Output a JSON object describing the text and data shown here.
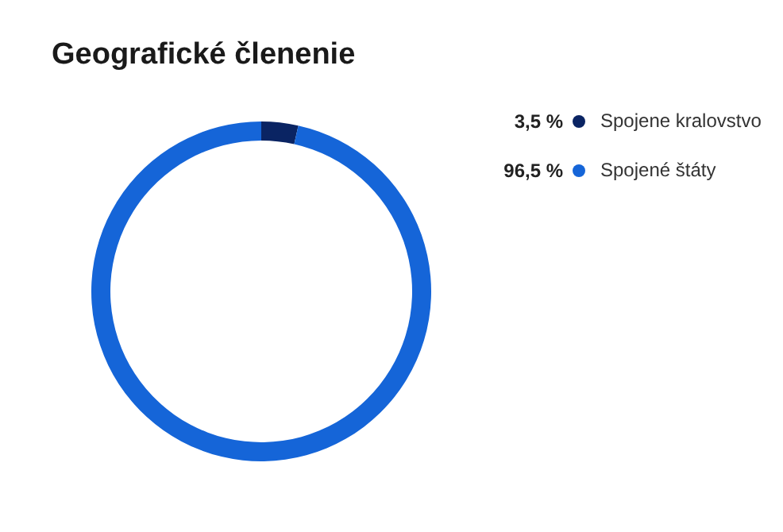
{
  "chart_data": {
    "type": "donut",
    "title": "Geografické členenie",
    "categories": [
      "Spojene kralovstvo",
      "Spojené štáty"
    ],
    "values": [
      3.5,
      96.5
    ],
    "colors": [
      "#0a2463",
      "#1565d8"
    ],
    "value_labels": [
      "3,5 %",
      "96,5 %"
    ],
    "legend": "right"
  }
}
